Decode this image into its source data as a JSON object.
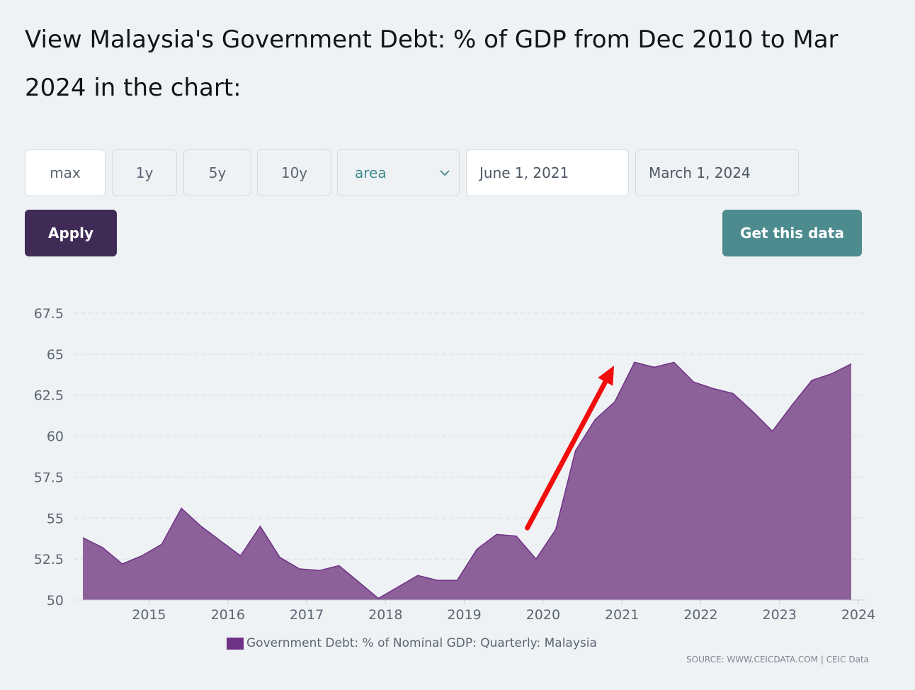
{
  "heading": "View Malaysia's Government Debt: % of GDP from Dec 2010 to Mar 2024 in the chart:",
  "controls": {
    "range_buttons": [
      "max",
      "1y",
      "5y",
      "10y"
    ],
    "chart_type_value": "area",
    "start_date": "June 1, 2021",
    "end_date": "March 1, 2024",
    "apply_label": "Apply",
    "get_data_label": "Get this data"
  },
  "colors": {
    "area_fill": "#8c6098",
    "area_line": "#6f3286",
    "apply_bg": "#3f2b56",
    "get_data_bg": "#4d8b8f",
    "annotation_arrow": "#f20d0d"
  },
  "icons": {
    "dropdown": "chevron-down-icon",
    "annotation": "red-arrow-up-right"
  },
  "chart_data": {
    "type": "area",
    "title": "",
    "xlabel": "",
    "ylabel": "",
    "ylim": [
      50,
      67.5
    ],
    "xlim": [
      2014.16,
      2024
    ],
    "yticks": [
      "50",
      "52.5",
      "55",
      "57.5",
      "60",
      "62.5",
      "65",
      "67.5"
    ],
    "xticks": [
      "2015",
      "2016",
      "2017",
      "2018",
      "2019",
      "2020",
      "2021",
      "2022",
      "2023",
      "2024"
    ],
    "grid": true,
    "legend_position": "bottom",
    "series": [
      {
        "name": "Government Debt: % of Nominal GDP: Quarterly: Malaysia",
        "x": [
          2014.16,
          2014.41,
          2014.66,
          2014.91,
          2015.16,
          2015.41,
          2015.66,
          2015.91,
          2016.16,
          2016.41,
          2016.66,
          2016.91,
          2017.16,
          2017.41,
          2017.66,
          2017.91,
          2018.16,
          2018.41,
          2018.66,
          2018.91,
          2019.16,
          2019.41,
          2019.66,
          2019.91,
          2020.16,
          2020.41,
          2020.66,
          2020.91,
          2021.16,
          2021.41,
          2021.66,
          2021.91,
          2022.16,
          2022.41,
          2022.66,
          2022.91,
          2023.16,
          2023.41,
          2023.66,
          2023.91
        ],
        "values": [
          53.8,
          53.2,
          52.2,
          52.7,
          53.4,
          55.6,
          54.5,
          53.6,
          52.7,
          54.5,
          52.6,
          51.9,
          51.8,
          52.1,
          51.1,
          50.1,
          50.8,
          51.5,
          51.2,
          51.2,
          53.1,
          54,
          53.9,
          52.5,
          54.3,
          59.1,
          61,
          62.1,
          64.5,
          64.2,
          64.5,
          63.3,
          62.9,
          62.6,
          61.5,
          60.3,
          61.9,
          63.4,
          63.8,
          64.4
        ]
      }
    ],
    "annotations": [
      {
        "type": "arrow",
        "from_x": 2019.8,
        "from_y": 54.4,
        "to_x": 2020.9,
        "to_y": 64.3
      }
    ],
    "source_note": "SOURCE: WWW.CEICDATA.COM | CEIC Data"
  }
}
